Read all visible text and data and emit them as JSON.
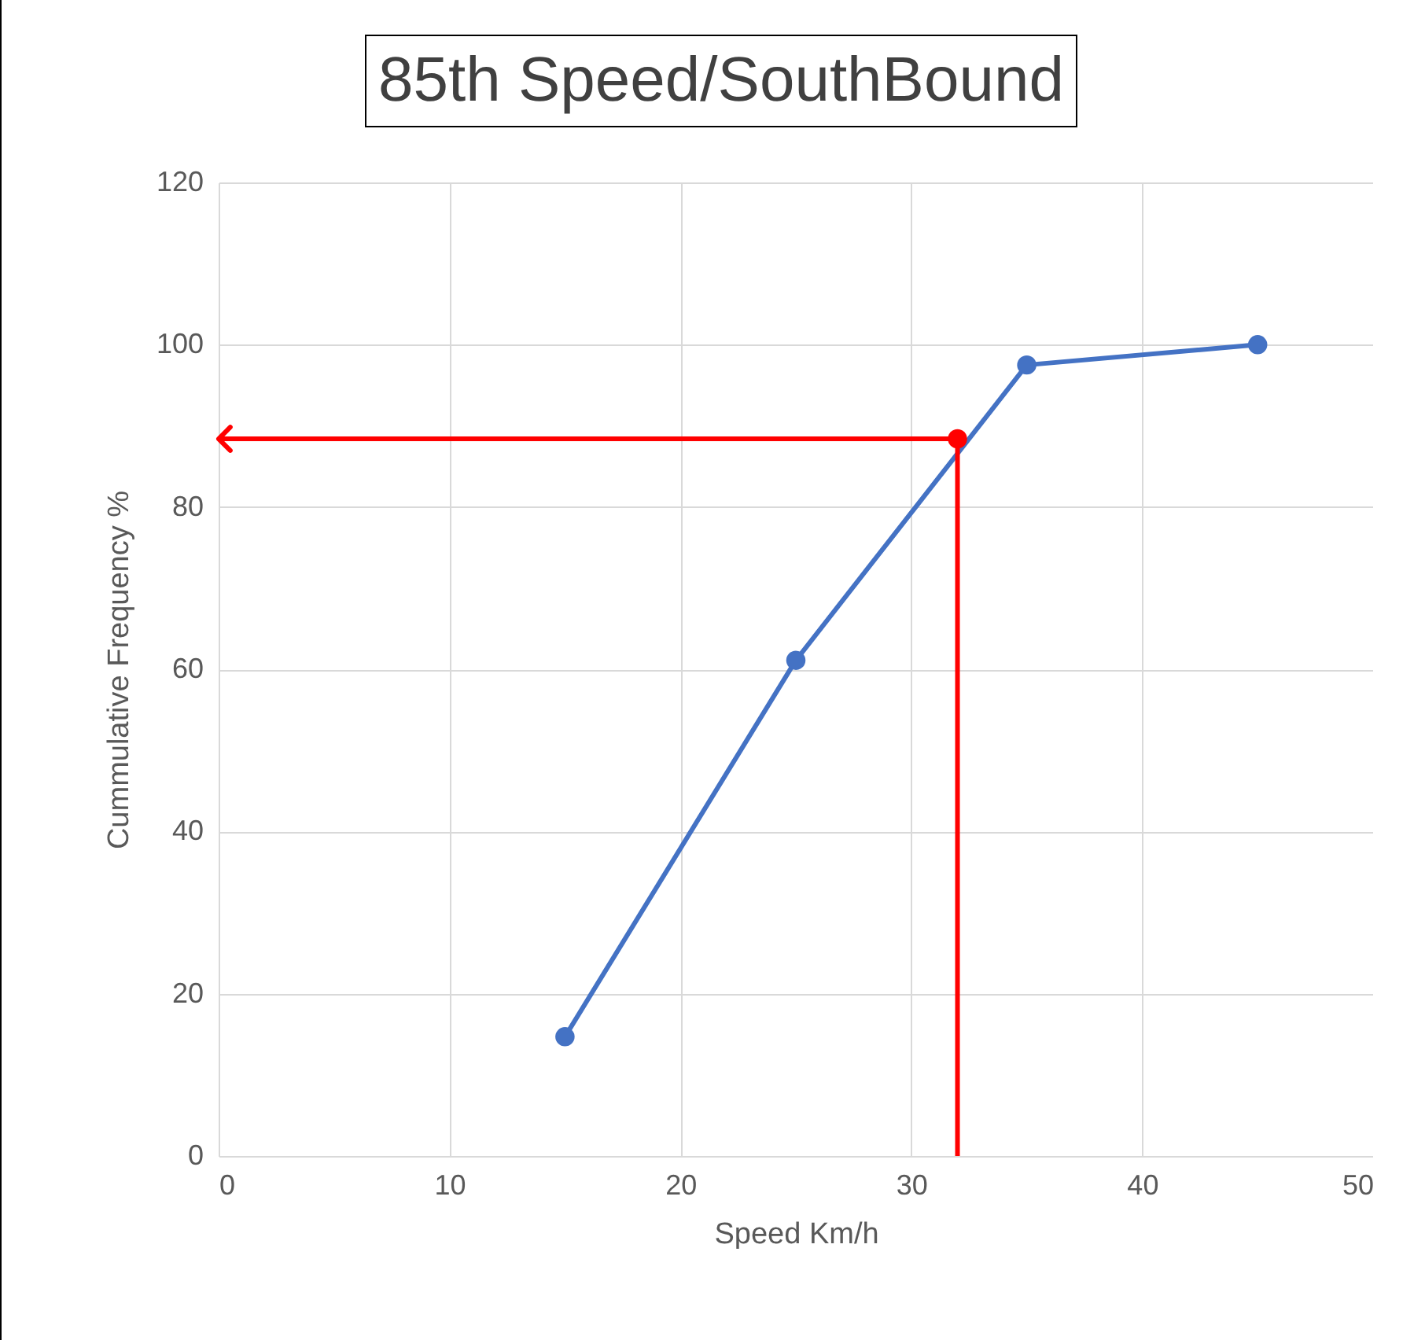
{
  "chart_data": {
    "type": "line",
    "title": "85th Speed/SouthBound",
    "xlabel": "Speed Km/h",
    "ylabel": "Cummulative Frequency %",
    "xlim": [
      0,
      50
    ],
    "xticks": [
      0,
      10,
      20,
      30,
      40,
      50
    ],
    "ylim": [
      0,
      120
    ],
    "yticks": [
      0,
      20,
      40,
      60,
      80,
      100,
      120
    ],
    "grid": true,
    "marker": "circle",
    "ref_lines": [
      {
        "axis": "x",
        "value": 32,
        "color": "#ff0000"
      },
      {
        "axis": "y",
        "value": 88.4,
        "color": "#ff0000"
      }
    ],
    "series": [
      {
        "x": [
          15,
          25,
          35,
          45
        ],
        "values": [
          14.7,
          61.1,
          97.5,
          100
        ],
        "color": "#4472c4"
      },
      {
        "type": "scatter",
        "x": [
          32
        ],
        "values": [
          88.4
        ],
        "color": "#ff0000"
      }
    ]
  }
}
